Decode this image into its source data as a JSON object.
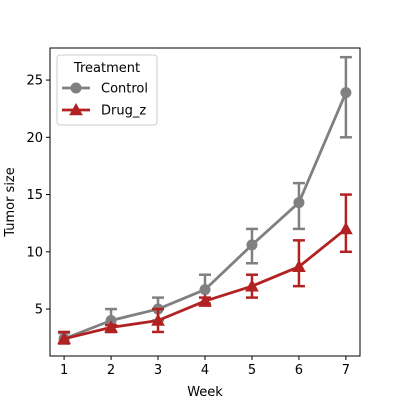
{
  "chart_data": {
    "type": "line",
    "xlabel": "Week",
    "ylabel": "Tumor size",
    "x": [
      1,
      2,
      3,
      4,
      5,
      6,
      7
    ],
    "xlim": [
      0.7,
      7.3
    ],
    "ylim": [
      0.9,
      27.8
    ],
    "xticks": [
      1,
      2,
      3,
      4,
      5,
      6,
      7
    ],
    "yticks": [
      5,
      10,
      15,
      20,
      25
    ],
    "grid": false,
    "legend": {
      "title": "Treatment",
      "position": "top-left"
    },
    "series": [
      {
        "name": "Control",
        "color": "#808080",
        "marker": "circle",
        "values": [
          2.4,
          4.0,
          5.0,
          6.7,
          10.6,
          14.3,
          23.9
        ],
        "err_low": [
          2.0,
          3.0,
          4.0,
          5.5,
          9.0,
          12.0,
          20.0
        ],
        "err_high": [
          2.9,
          5.0,
          6.0,
          8.0,
          12.0,
          16.0,
          27.0
        ]
      },
      {
        "name": "Drug_z",
        "color": "#b22222",
        "marker": "triangle",
        "values": [
          2.4,
          3.4,
          4.0,
          5.7,
          7.0,
          8.7,
          12.0
        ],
        "err_low": [
          2.0,
          3.0,
          3.0,
          5.3,
          6.0,
          7.0,
          10.0
        ],
        "err_high": [
          3.0,
          3.6,
          5.0,
          6.0,
          8.0,
          11.0,
          15.0
        ]
      }
    ]
  }
}
